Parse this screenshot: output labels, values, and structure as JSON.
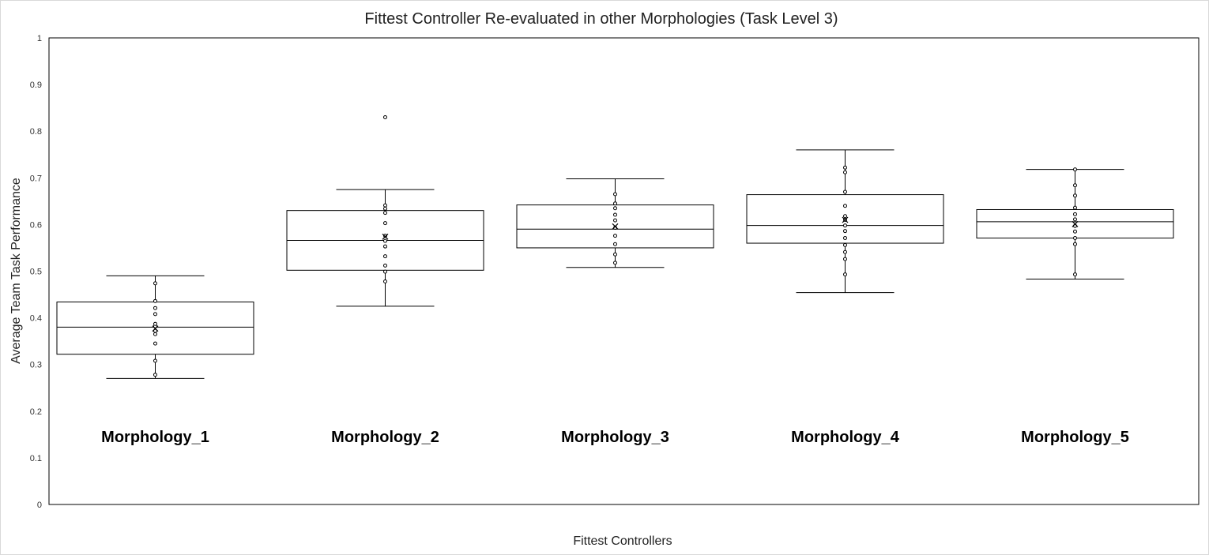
{
  "chart_data": {
    "type": "box",
    "title": "Fittest Controller Re-evaluated in other Morphologies (Task Level 3)",
    "xlabel": "Fittest Controllers",
    "ylabel": "Average Team Task Performance",
    "ylim": [
      0,
      1
    ],
    "yticks": [
      "0",
      "0.1",
      "0.2",
      "0.3",
      "0.4",
      "0.5",
      "0.6",
      "0.7",
      "0.8",
      "0.9",
      "1"
    ],
    "grid": false,
    "legend": "none",
    "categories": [
      "Morphology_1",
      "Morphology_2",
      "Morphology_3",
      "Morphology_4",
      "Morphology_5"
    ],
    "boxes": [
      {
        "min": 0.27,
        "q1": 0.322,
        "median": 0.38,
        "q3": 0.434,
        "max": 0.49,
        "mean": 0.377,
        "points": [
          0.278,
          0.308,
          0.345,
          0.365,
          0.372,
          0.382,
          0.387,
          0.408,
          0.421,
          0.436,
          0.474
        ],
        "outliers": []
      },
      {
        "min": 0.425,
        "q1": 0.502,
        "median": 0.566,
        "q3": 0.63,
        "max": 0.675,
        "mean": 0.574,
        "points": [
          0.478,
          0.499,
          0.512,
          0.532,
          0.553,
          0.565,
          0.576,
          0.603,
          0.625,
          0.634,
          0.641
        ],
        "outliers": [
          0.83
        ]
      },
      {
        "min": 0.508,
        "q1": 0.55,
        "median": 0.59,
        "q3": 0.642,
        "max": 0.698,
        "mean": 0.596,
        "points": [
          0.518,
          0.536,
          0.558,
          0.576,
          0.593,
          0.609,
          0.621,
          0.635,
          0.645,
          0.665
        ],
        "outliers": []
      },
      {
        "min": 0.454,
        "q1": 0.56,
        "median": 0.598,
        "q3": 0.664,
        "max": 0.76,
        "mean": 0.61,
        "points": [
          0.493,
          0.526,
          0.541,
          0.556,
          0.571,
          0.586,
          0.598,
          0.61,
          0.618,
          0.64,
          0.67,
          0.712,
          0.722
        ],
        "outliers": []
      },
      {
        "min": 0.483,
        "q1": 0.571,
        "median": 0.606,
        "q3": 0.632,
        "max": 0.718,
        "mean": 0.601,
        "points": [
          0.493,
          0.558,
          0.571,
          0.585,
          0.597,
          0.611,
          0.622,
          0.636,
          0.662,
          0.684,
          0.718
        ],
        "outliers": []
      }
    ]
  }
}
